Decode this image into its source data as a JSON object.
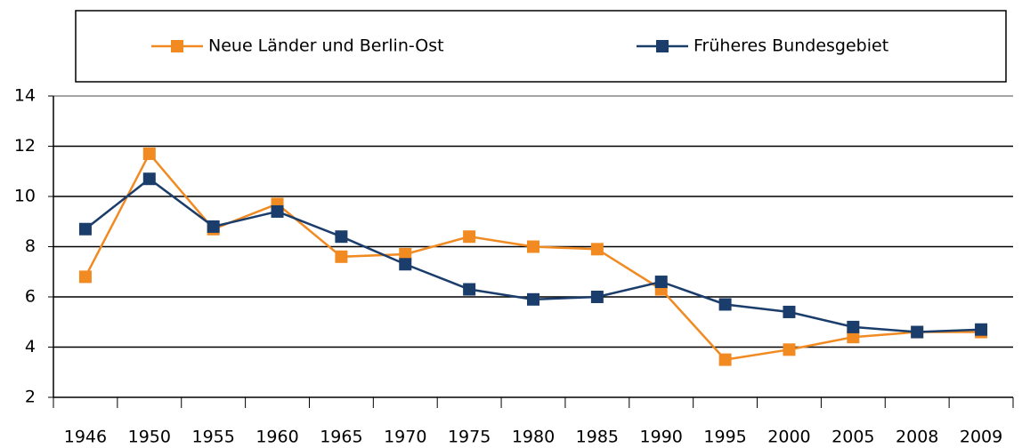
{
  "chart_data": {
    "type": "line",
    "categories": [
      "1946",
      "1950",
      "1955",
      "1960",
      "1965",
      "1970",
      "1975",
      "1980",
      "1985",
      "1990",
      "1995",
      "2000",
      "2005",
      "2008",
      "2009"
    ],
    "series": [
      {
        "name": "Neue Länder und Berlin-Ost",
        "color": "#f28a22",
        "values": [
          6.8,
          11.7,
          8.7,
          9.7,
          7.6,
          7.7,
          8.4,
          8.0,
          7.9,
          6.3,
          3.5,
          3.9,
          4.4,
          4.6,
          4.6
        ]
      },
      {
        "name": "Früheres Bundesgebiet",
        "color": "#1b3d6b",
        "values": [
          8.7,
          10.7,
          8.8,
          9.4,
          8.4,
          7.3,
          6.3,
          5.9,
          6.0,
          6.6,
          5.7,
          5.4,
          4.8,
          4.6,
          4.7
        ]
      }
    ],
    "ylim": [
      2,
      14
    ],
    "yticks": [
      2,
      4,
      6,
      8,
      10,
      12,
      14
    ],
    "grid": true,
    "legend": "top"
  }
}
